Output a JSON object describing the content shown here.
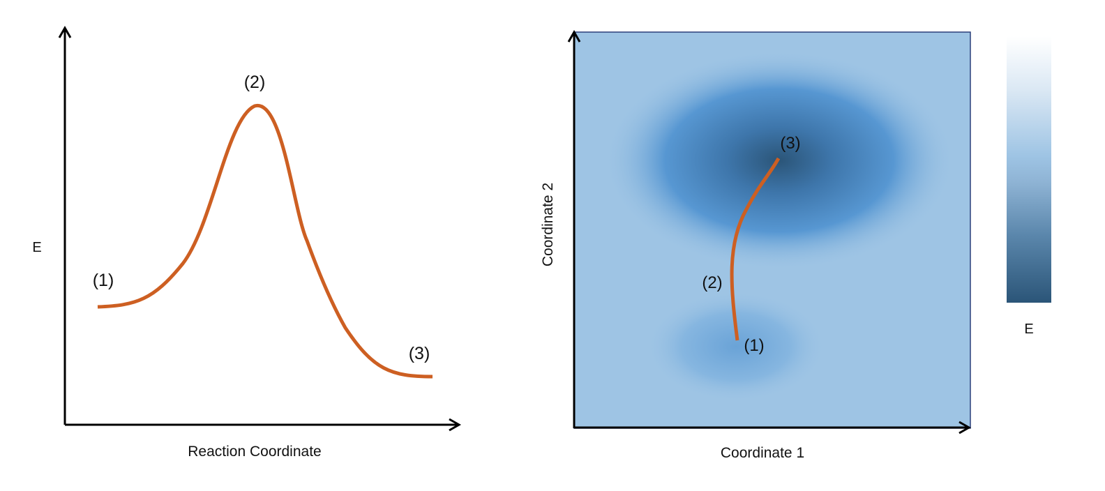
{
  "left_plot": {
    "y_axis_label": "E",
    "x_axis_label": "Reaction Coordinate",
    "point_labels": [
      "(1)",
      "(2)",
      "(3)"
    ]
  },
  "right_plot": {
    "x_axis_label": "Coordinate 1",
    "y_axis_label": "Coordinate 2",
    "point_labels": [
      "(1)",
      "(2)",
      "(3)"
    ],
    "colorbar_label": "E"
  },
  "colors": {
    "curve": "#cd5f22",
    "surface_background": "#9ec4e4",
    "basin_deep": "#2b5578",
    "basin_mid": "#4c8cc8",
    "frame": "#2a3f7a"
  }
}
